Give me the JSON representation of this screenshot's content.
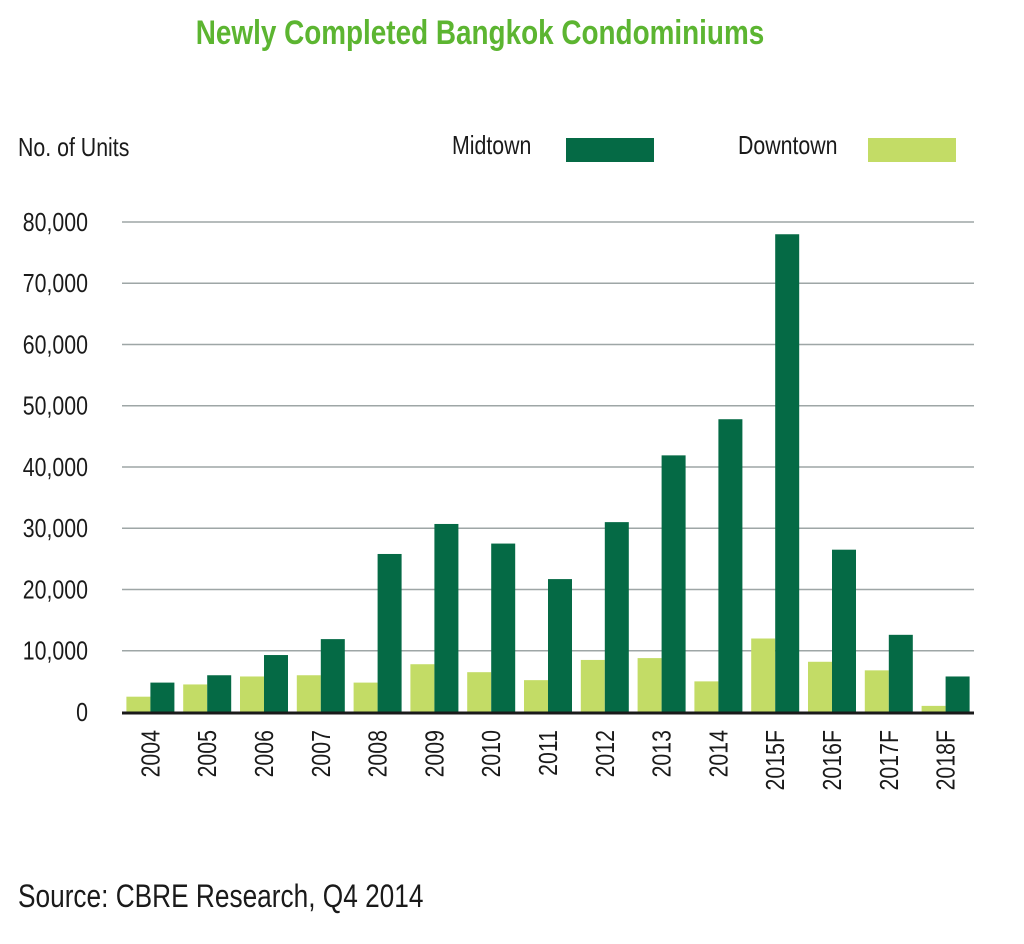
{
  "colors": {
    "title": "#5cb531",
    "midtown": "#056a45",
    "downtown": "#c3dc66",
    "grid": "#9ea6a6",
    "axis": "#1a1a1a"
  },
  "chart_data": {
    "type": "bar",
    "title": "Newly Completed Bangkok Condominiums",
    "ylabel": "No. of Units",
    "xlabel": "",
    "ylim": [
      0,
      80000
    ],
    "yticks": [
      0,
      10000,
      20000,
      30000,
      40000,
      50000,
      60000,
      70000,
      80000
    ],
    "ytick_labels": [
      "0",
      "10,000",
      "20,000",
      "30,000",
      "40,000",
      "50,000",
      "60,000",
      "70,000",
      "80,000"
    ],
    "legend_position": "top-right",
    "grid": true,
    "categories": [
      "2004",
      "2005",
      "2006",
      "2007",
      "2008",
      "2009",
      "2010",
      "2011",
      "2012",
      "2013",
      "2014",
      "2015F",
      "2016F",
      "2017F",
      "2018F"
    ],
    "series": [
      {
        "name": "Downtown",
        "values": [
          2500,
          4500,
          5800,
          6000,
          4800,
          7800,
          6500,
          5200,
          8500,
          8800,
          5000,
          12000,
          8200,
          6800,
          1000
        ]
      },
      {
        "name": "Midtown",
        "values": [
          4800,
          6000,
          9300,
          11900,
          25800,
          30700,
          27500,
          21700,
          31000,
          41900,
          47800,
          78000,
          26500,
          12600,
          5800
        ]
      }
    ],
    "source": "Source: CBRE Research, Q4 2014"
  }
}
